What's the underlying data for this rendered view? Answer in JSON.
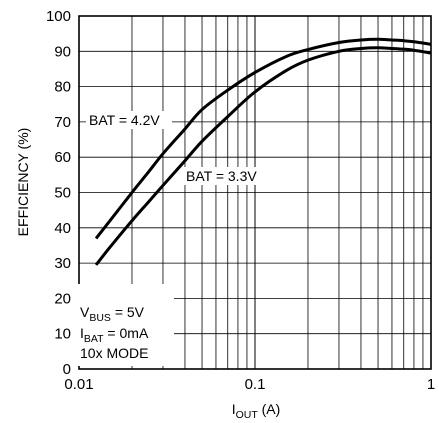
{
  "chart_data": {
    "type": "line",
    "title": "",
    "xlabel": {
      "main": "I",
      "sub": "OUT",
      "tail": " (A)"
    },
    "ylabel": "EFFICIENCY (%)",
    "xscale": "log",
    "xlim": [
      0.01,
      1
    ],
    "ylim": [
      0,
      100
    ],
    "grid": true,
    "x_ticks": [
      {
        "value": 0.01,
        "label": "0.01"
      },
      {
        "value": 0.1,
        "label": "0.1"
      },
      {
        "value": 1,
        "label": "1"
      }
    ],
    "y_ticks": [
      {
        "value": 0,
        "label": "0"
      },
      {
        "value": 10,
        "label": "10"
      },
      {
        "value": 20,
        "label": "20"
      },
      {
        "value": 30,
        "label": "30"
      },
      {
        "value": 40,
        "label": "40"
      },
      {
        "value": 50,
        "label": "50"
      },
      {
        "value": 60,
        "label": "60"
      },
      {
        "value": 70,
        "label": "70"
      },
      {
        "value": 80,
        "label": "80"
      },
      {
        "value": 90,
        "label": "90"
      },
      {
        "value": 100,
        "label": "100"
      }
    ],
    "series": [
      {
        "name": "BAT = 4.2V",
        "x": [
          0.0125,
          0.015,
          0.02,
          0.025,
          0.03,
          0.04,
          0.05,
          0.07,
          0.1,
          0.15,
          0.2,
          0.3,
          0.4,
          0.5,
          0.6,
          0.7,
          0.8,
          1.0
        ],
        "y": [
          37,
          42,
          50,
          56,
          61,
          68,
          73.5,
          79,
          84,
          88.5,
          90.5,
          92.5,
          93.2,
          93.4,
          93.2,
          93,
          92.7,
          92
        ]
      },
      {
        "name": "BAT = 3.3V",
        "x": [
          0.0125,
          0.015,
          0.02,
          0.025,
          0.03,
          0.04,
          0.05,
          0.07,
          0.1,
          0.15,
          0.2,
          0.3,
          0.4,
          0.5,
          0.6,
          0.7,
          0.8,
          1.0
        ],
        "y": [
          29.5,
          34.5,
          42,
          47.5,
          52,
          59,
          64.5,
          71.5,
          78.5,
          84.5,
          87.5,
          90,
          90.8,
          91,
          90.8,
          90.6,
          90.3,
          89.5
        ]
      }
    ],
    "annotations": {
      "series_label_1": "BAT = 4.2V",
      "series_label_2": "BAT = 3.3V",
      "conditions": [
        {
          "main": "V",
          "sub": "BUS",
          "tail": " = 5V"
        },
        {
          "main": "I",
          "sub": "BAT",
          "tail": " = 0mA"
        },
        {
          "main": "10x MODE",
          "sub": "",
          "tail": ""
        }
      ]
    },
    "colors": {
      "line": "#000000",
      "grid": "#000000",
      "background": "#ffffff"
    }
  }
}
